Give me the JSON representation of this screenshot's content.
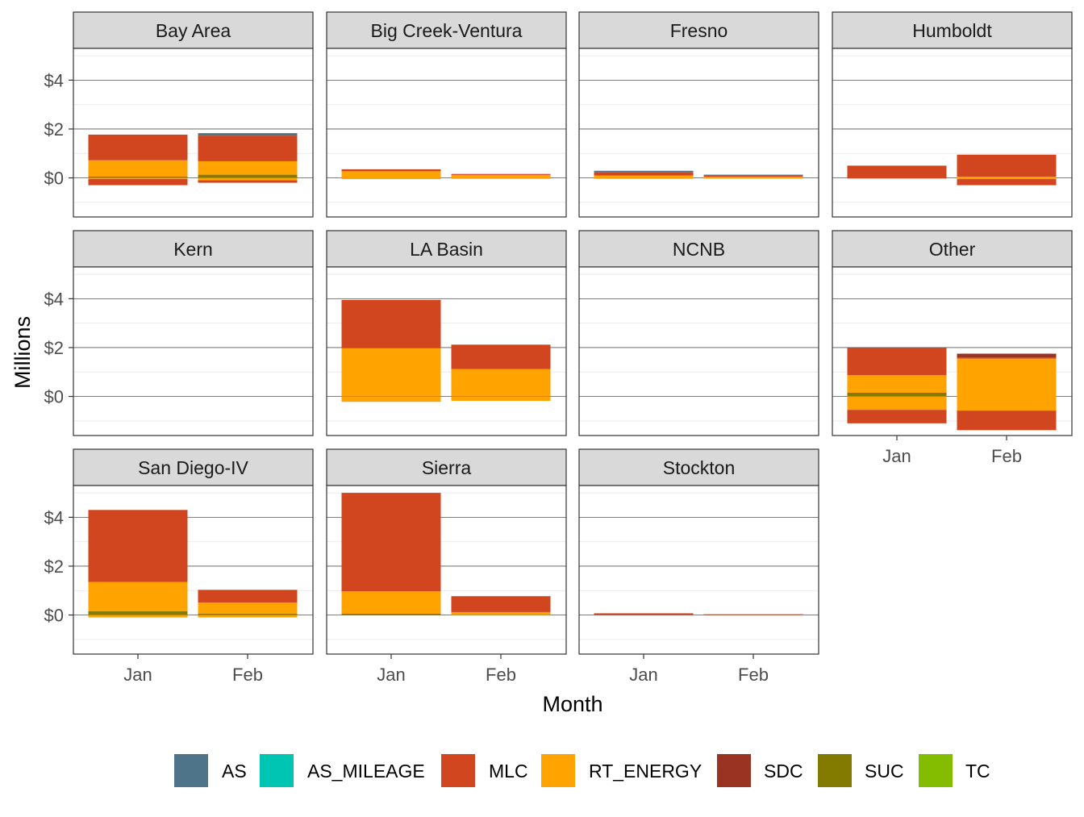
{
  "chart_data": {
    "type": "bar",
    "stacked": true,
    "diverging": true,
    "xlabel": "Month",
    "ylabel": "Millions",
    "ylim": [
      -1.6,
      5.3
    ],
    "y_ticks": [
      0,
      2,
      4
    ],
    "y_tick_labels": [
      "$0",
      "$2",
      "$4"
    ],
    "categories": [
      "Jan",
      "Feb"
    ],
    "grid": true,
    "legend_position": "bottom",
    "legend": [
      {
        "name": "AS",
        "color": "#4E7489"
      },
      {
        "name": "AS_MILEAGE",
        "color": "#00C5B2"
      },
      {
        "name": "MLC",
        "color": "#D1451F"
      },
      {
        "name": "RT_ENERGY",
        "color": "#FFA300"
      },
      {
        "name": "SDC",
        "color": "#9A3322"
      },
      {
        "name": "SUC",
        "color": "#837A00"
      },
      {
        "name": "TC",
        "color": "#84BD00"
      }
    ],
    "panels": [
      {
        "name": "Bay Area",
        "bars": [
          {
            "month": "Jan",
            "segments": [
              {
                "series": "SUC",
                "value": 0.05
              },
              {
                "series": "RT_ENERGY",
                "value": 0.67
              },
              {
                "series": "MLC",
                "value": 1.05
              },
              {
                "series": "RT_ENERGY",
                "value": -0.05
              },
              {
                "series": "MLC",
                "value": -0.25
              }
            ]
          },
          {
            "month": "Feb",
            "segments": [
              {
                "series": "SUC",
                "value": 0.13
              },
              {
                "series": "RT_ENERGY",
                "value": 0.55
              },
              {
                "series": "MLC",
                "value": 1.05
              },
              {
                "series": "AS",
                "value": 0.1
              },
              {
                "series": "RT_ENERGY",
                "value": -0.1
              },
              {
                "series": "MLC",
                "value": -0.1
              }
            ]
          }
        ]
      },
      {
        "name": "Big Creek-Ventura",
        "bars": [
          {
            "month": "Jan",
            "segments": [
              {
                "series": "RT_ENERGY",
                "value": 0.27
              },
              {
                "series": "MLC",
                "value": 0.08
              },
              {
                "series": "RT_ENERGY",
                "value": -0.05
              }
            ]
          },
          {
            "month": "Feb",
            "segments": [
              {
                "series": "RT_ENERGY",
                "value": 0.12
              },
              {
                "series": "MLC",
                "value": 0.04
              },
              {
                "series": "RT_ENERGY",
                "value": -0.04
              }
            ]
          }
        ]
      },
      {
        "name": "Fresno",
        "bars": [
          {
            "month": "Jan",
            "segments": [
              {
                "series": "RT_ENERGY",
                "value": 0.1
              },
              {
                "series": "MLC",
                "value": 0.12
              },
              {
                "series": "AS",
                "value": 0.07
              },
              {
                "series": "RT_ENERGY",
                "value": -0.04
              }
            ]
          },
          {
            "month": "Feb",
            "segments": [
              {
                "series": "RT_ENERGY",
                "value": 0.05
              },
              {
                "series": "MLC",
                "value": 0.06
              },
              {
                "series": "AS",
                "value": 0.02
              },
              {
                "series": "RT_ENERGY",
                "value": -0.03
              }
            ]
          }
        ]
      },
      {
        "name": "Humboldt",
        "bars": [
          {
            "month": "Jan",
            "segments": [
              {
                "series": "MLC",
                "value": 0.5
              },
              {
                "series": "MLC",
                "value": -0.02
              }
            ]
          },
          {
            "month": "Feb",
            "segments": [
              {
                "series": "RT_ENERGY",
                "value": 0.05
              },
              {
                "series": "MLC",
                "value": 0.9
              },
              {
                "series": "RT_ENERGY",
                "value": -0.05
              },
              {
                "series": "MLC",
                "value": -0.25
              }
            ]
          }
        ]
      },
      {
        "name": "Kern",
        "bars": []
      },
      {
        "name": "LA Basin",
        "bars": [
          {
            "month": "Jan",
            "segments": [
              {
                "series": "SUC",
                "value": 0.02
              },
              {
                "series": "RT_ENERGY",
                "value": 1.95
              },
              {
                "series": "MLC",
                "value": 1.98
              },
              {
                "series": "RT_ENERGY",
                "value": -0.22
              }
            ]
          },
          {
            "month": "Feb",
            "segments": [
              {
                "series": "SUC",
                "value": 0.02
              },
              {
                "series": "RT_ENERGY",
                "value": 1.1
              },
              {
                "series": "MLC",
                "value": 1.0
              },
              {
                "series": "RT_ENERGY",
                "value": -0.18
              }
            ]
          }
        ]
      },
      {
        "name": "NCNB",
        "bars": []
      },
      {
        "name": "Other",
        "bars": [
          {
            "month": "Jan",
            "segments": [
              {
                "series": "SUC",
                "value": 0.15
              },
              {
                "series": "RT_ENERGY",
                "value": 0.72
              },
              {
                "series": "MLC",
                "value": 1.13
              },
              {
                "series": "RT_ENERGY",
                "value": -0.55
              },
              {
                "series": "MLC",
                "value": -0.55
              }
            ]
          },
          {
            "month": "Feb",
            "segments": [
              {
                "series": "RT_ENERGY",
                "value": 1.55
              },
              {
                "series": "MLC",
                "value": 0.05
              },
              {
                "series": "SDC",
                "value": 0.15
              },
              {
                "series": "RT_ENERGY",
                "value": -0.58
              },
              {
                "series": "MLC",
                "value": -0.8
              }
            ]
          }
        ]
      },
      {
        "name": "San Diego-IV",
        "bars": [
          {
            "month": "Jan",
            "segments": [
              {
                "series": "SUC",
                "value": 0.15
              },
              {
                "series": "RT_ENERGY",
                "value": 1.2
              },
              {
                "series": "MLC",
                "value": 2.95
              },
              {
                "series": "RT_ENERGY",
                "value": -0.1
              }
            ]
          },
          {
            "month": "Feb",
            "segments": [
              {
                "series": "SUC",
                "value": 0.06
              },
              {
                "series": "RT_ENERGY",
                "value": 0.45
              },
              {
                "series": "MLC",
                "value": 0.52
              },
              {
                "series": "RT_ENERGY",
                "value": -0.1
              }
            ]
          }
        ]
      },
      {
        "name": "Sierra",
        "bars": [
          {
            "month": "Jan",
            "segments": [
              {
                "series": "SUC",
                "value": 0.05
              },
              {
                "series": "RT_ENERGY",
                "value": 0.92
              },
              {
                "series": "MLC",
                "value": 4.03
              }
            ]
          },
          {
            "month": "Feb",
            "segments": [
              {
                "series": "RT_ENERGY",
                "value": 0.12
              },
              {
                "series": "MLC",
                "value": 0.65
              }
            ]
          }
        ]
      },
      {
        "name": "Stockton",
        "bars": [
          {
            "month": "Jan",
            "segments": [
              {
                "series": "MLC",
                "value": 0.07
              }
            ]
          },
          {
            "month": "Feb",
            "segments": [
              {
                "series": "MLC",
                "value": 0.03
              }
            ]
          }
        ]
      }
    ]
  }
}
